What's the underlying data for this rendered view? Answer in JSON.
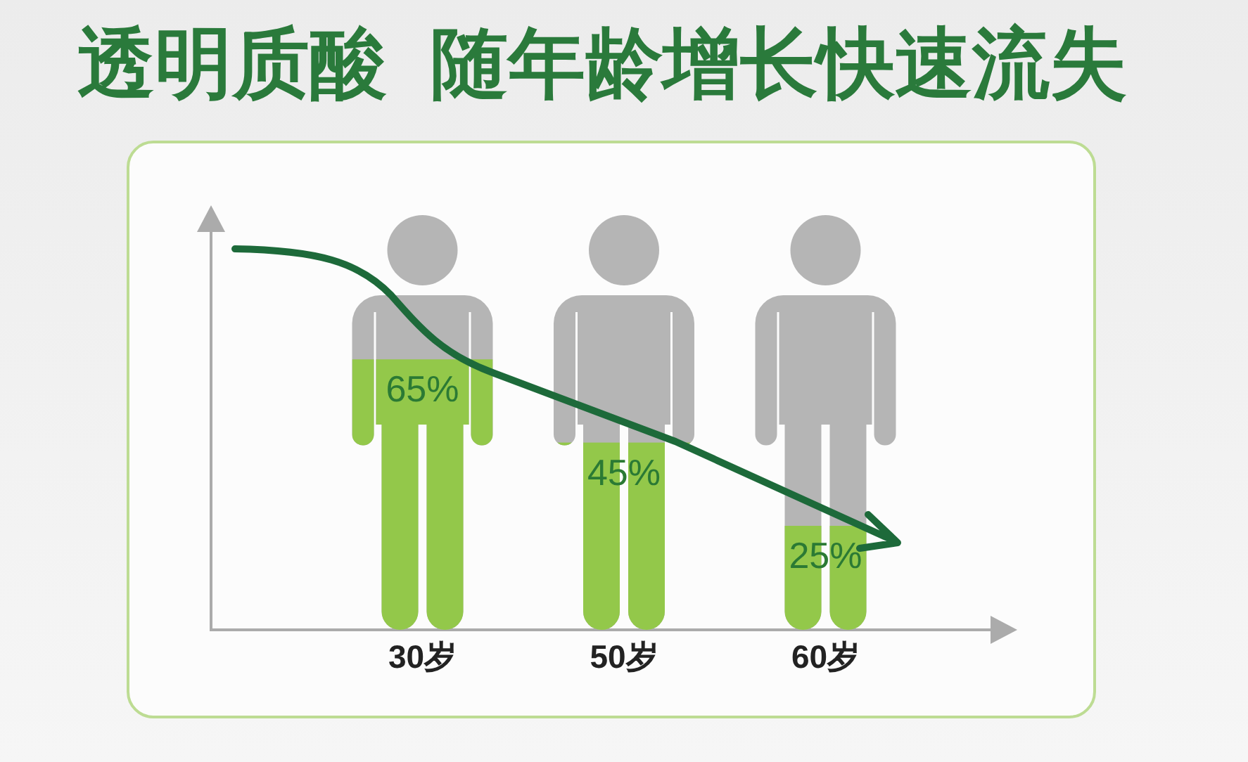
{
  "chart_data": {
    "type": "bar",
    "title": "透明质酸  随年龄增长快速流失",
    "categories": [
      "30岁",
      "50岁",
      "60岁"
    ],
    "values": [
      65,
      45,
      25
    ],
    "value_labels": [
      "65%",
      "45%",
      "25%"
    ],
    "color": "#93c84a",
    "ylim": [
      0,
      100
    ],
    "tick_labels": "x"
  }
}
